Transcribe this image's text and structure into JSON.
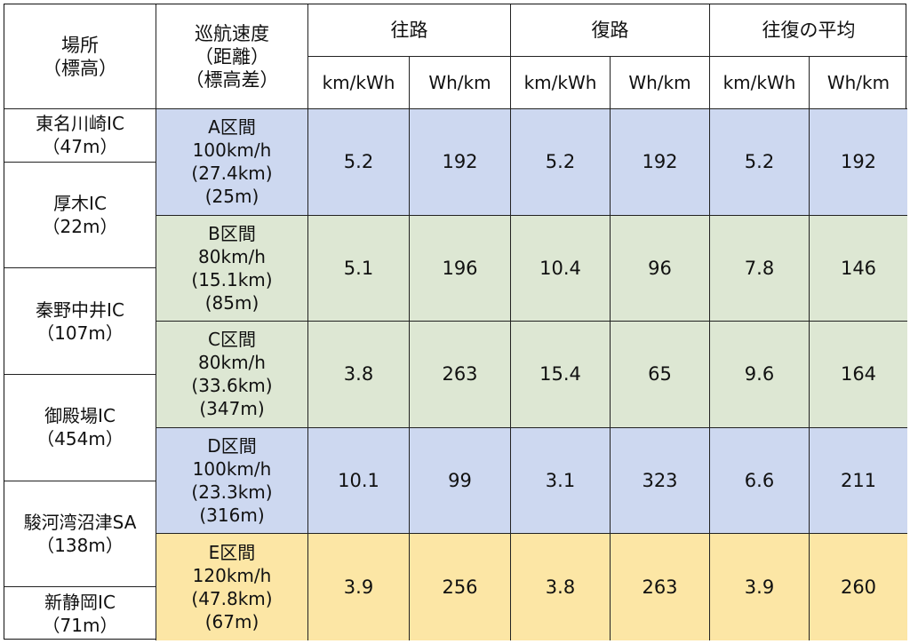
{
  "header": {
    "location": [
      "場所",
      "（標高）"
    ],
    "speed": [
      "巡航速度",
      "（距離）",
      "（標高差）"
    ],
    "groups": [
      "往路",
      "復路",
      "往復の平均"
    ],
    "units": [
      "km/kWh",
      "Wh/km",
      "km/kWh",
      "Wh/km",
      "km/kWh",
      "Wh/km"
    ]
  },
  "locations": [
    {
      "name": "東名川崎IC",
      "elev": "（47m）"
    },
    {
      "name": "厚木IC",
      "elev": "（22m）"
    },
    {
      "name": "秦野中井IC",
      "elev": "（107m）"
    },
    {
      "name": "御殿場IC",
      "elev": "（454m）"
    },
    {
      "name": "駿河湾沼津SA",
      "elev": "（138m）"
    },
    {
      "name": "新静岡IC",
      "elev": "（71m）"
    }
  ],
  "segments": [
    {
      "lines": [
        "A区間",
        "100km/h",
        "(27.4km)",
        "(25m)"
      ],
      "values": [
        "5.2",
        "192",
        "5.2",
        "192",
        "5.2",
        "192"
      ],
      "color": "#cdd8f0"
    },
    {
      "lines": [
        "B区間",
        "80km/h",
        "(15.1km)",
        "(85m)"
      ],
      "values": [
        "5.1",
        "196",
        "10.4",
        "96",
        "7.8",
        "146"
      ],
      "color": "#dde7d3"
    },
    {
      "lines": [
        "C区間",
        "80km/h",
        "(33.6km)",
        "(347m)"
      ],
      "values": [
        "3.8",
        "263",
        "15.4",
        "65",
        "9.6",
        "164"
      ],
      "color": "#dde7d3"
    },
    {
      "lines": [
        "D区間",
        "100km/h",
        "(23.3km)",
        "(316m)"
      ],
      "values": [
        "10.1",
        "99",
        "3.1",
        "323",
        "6.6",
        "211"
      ],
      "color": "#cdd8f0"
    },
    {
      "lines": [
        "E区間",
        "120km/h",
        "(47.8km)",
        "(67m)"
      ],
      "values": [
        "3.9",
        "256",
        "3.8",
        "263",
        "3.9",
        "260"
      ],
      "color": "#fce6a5"
    }
  ]
}
